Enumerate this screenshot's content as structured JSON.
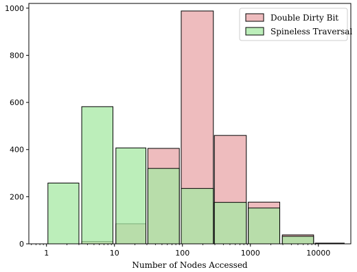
{
  "chart_data": {
    "type": "bar",
    "xlabel": "Number of Nodes Accessed",
    "ylabel": "",
    "xscale": "log",
    "xlim": [
      0.55,
      30000
    ],
    "ylim": [
      0,
      1020
    ],
    "xticks": [
      {
        "value": 1,
        "label": "1"
      },
      {
        "value": 10,
        "label": "10"
      },
      {
        "value": 100,
        "label": "100"
      },
      {
        "value": 1000,
        "label": "1000"
      },
      {
        "value": 10000,
        "label": "10000"
      }
    ],
    "yticks": [
      0,
      200,
      400,
      600,
      800,
      1000
    ],
    "legend_position": "top-right",
    "grid": false,
    "series": [
      {
        "name": "Double Dirty Bit",
        "color": "#e8a5a8",
        "bins": [
          {
            "start": 3.3,
            "end": 9.5,
            "value": 10
          },
          {
            "start": 10.5,
            "end": 29,
            "value": 85
          },
          {
            "start": 31,
            "end": 90,
            "value": 405
          },
          {
            "start": 96,
            "end": 285,
            "value": 988
          },
          {
            "start": 295,
            "end": 870,
            "value": 460
          },
          {
            "start": 930,
            "end": 2700,
            "value": 177
          },
          {
            "start": 2950,
            "end": 8500,
            "value": 38
          },
          {
            "start": 9000,
            "end": 24000,
            "value": 3
          }
        ]
      },
      {
        "name": "Spineless Traversal",
        "color": "#a6e8a3",
        "bins": [
          {
            "start": 1.05,
            "end": 3.0,
            "value": 258
          },
          {
            "start": 3.3,
            "end": 9.5,
            "value": 582
          },
          {
            "start": 10.5,
            "end": 29,
            "value": 407
          },
          {
            "start": 31,
            "end": 90,
            "value": 320
          },
          {
            "start": 96,
            "end": 285,
            "value": 235
          },
          {
            "start": 295,
            "end": 870,
            "value": 176
          },
          {
            "start": 930,
            "end": 2700,
            "value": 152
          },
          {
            "start": 2950,
            "end": 8500,
            "value": 32
          }
        ]
      }
    ]
  }
}
